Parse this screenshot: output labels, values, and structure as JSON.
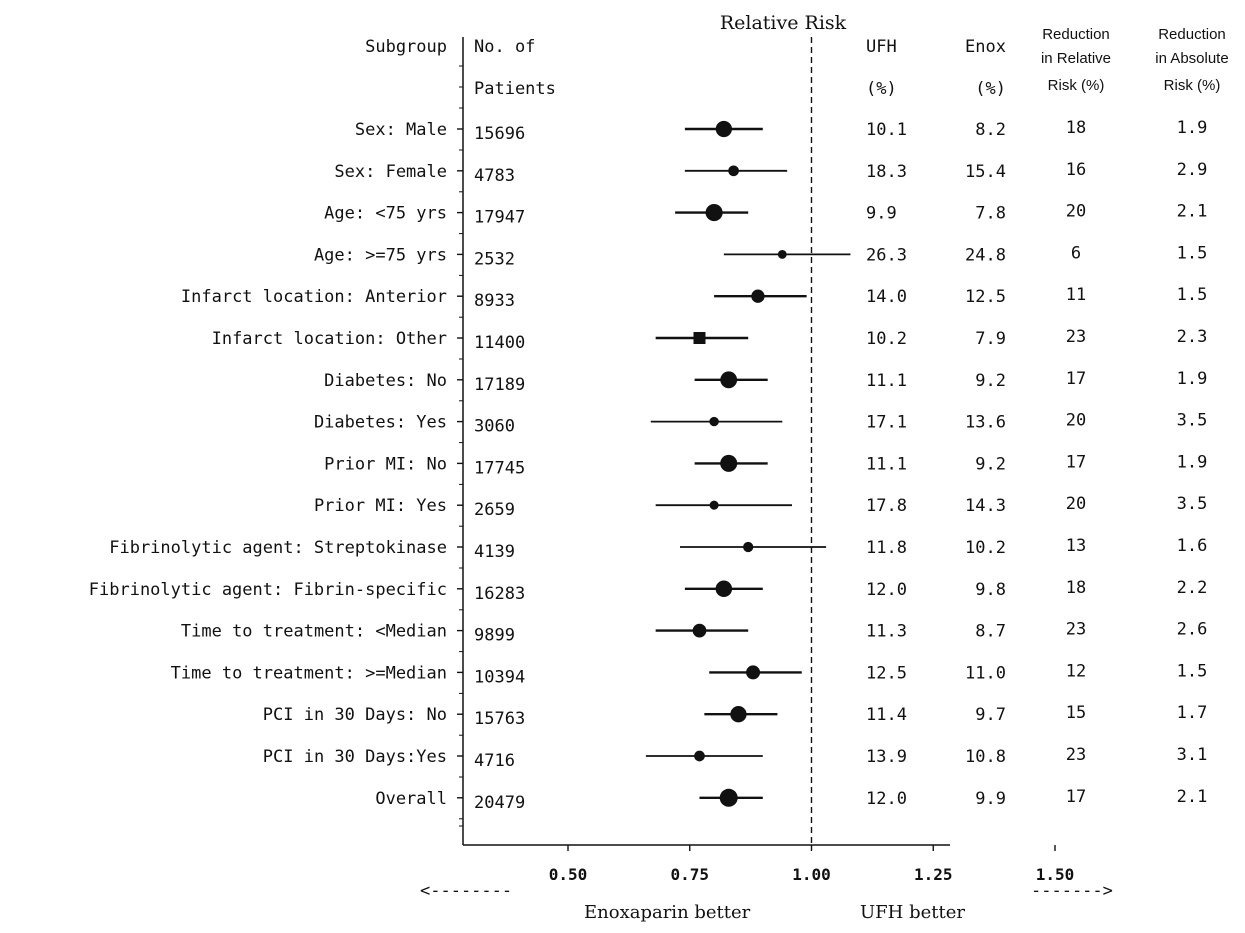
{
  "chart_data": {
    "type": "forest",
    "title": "Relative Risk",
    "columns": {
      "subgroup": "Subgroup",
      "n_line1": "No. of",
      "n_line2": "Patients",
      "ufh_line1": "UFH",
      "ufh_line2": "(%)",
      "enox_line1": "Enox",
      "enox_line2": "(%)",
      "rrr_line1": "Reduction",
      "rrr_line2": "in Relative",
      "rrr_line3": "Risk (%)",
      "arr_line1": "Reduction",
      "arr_line2": "in Absolute",
      "arr_line3": "Risk (%)"
    },
    "x_ticks": [
      "0.50",
      "0.75",
      "1.00",
      "1.25",
      "1.50"
    ],
    "x_tick_values": [
      0.5,
      0.75,
      1.0,
      1.25,
      1.5
    ],
    "xlim": [
      0.3,
      1.75
    ],
    "reference_line": 1.0,
    "footer": {
      "left_arrow": "<--------",
      "left_label": "Enoxaparin better",
      "right_label": "UFH  better",
      "right_arrow": "------->"
    },
    "rows": [
      {
        "label": "Sex: Male",
        "n": "15696",
        "rr": 0.82,
        "lo": 0.74,
        "hi": 0.9,
        "ufh": "10.1",
        "enox": "8.2",
        "rrr": "18",
        "arr": "1.9",
        "weight": 0.77
      },
      {
        "label": "Sex: Female",
        "n": "4783",
        "rr": 0.84,
        "lo": 0.74,
        "hi": 0.95,
        "ufh": "18.3",
        "enox": "15.4",
        "rrr": "16",
        "arr": "2.9",
        "weight": 0.23
      },
      {
        "label": "Age: <75 yrs",
        "n": "17947",
        "rr": 0.8,
        "lo": 0.72,
        "hi": 0.87,
        "ufh": "9.9",
        "enox": "7.8",
        "rrr": "20",
        "arr": "2.1",
        "weight": 0.88
      },
      {
        "label": "Age: >=75 yrs",
        "n": "2532",
        "rr": 0.94,
        "lo": 0.82,
        "hi": 1.08,
        "ufh": "26.3",
        "enox": "24.8",
        "rrr": "6",
        "arr": "1.5",
        "weight": 0.12
      },
      {
        "label": "Infarct location: Anterior",
        "n": "8933",
        "rr": 0.89,
        "lo": 0.8,
        "hi": 0.99,
        "ufh": "14.0",
        "enox": "12.5",
        "rrr": "11",
        "arr": "1.5",
        "weight": 0.44
      },
      {
        "label": "Infarct location: Other",
        "n": "11400",
        "rr": 0.77,
        "lo": 0.68,
        "hi": 0.87,
        "ufh": "10.2",
        "enox": "7.9",
        "rrr": "23",
        "arr": "2.3",
        "weight": 0.56
      },
      {
        "label": "Diabetes: No",
        "n": "17189",
        "rr": 0.83,
        "lo": 0.76,
        "hi": 0.91,
        "ufh": "11.1",
        "enox": "9.2",
        "rrr": "17",
        "arr": "1.9",
        "weight": 0.84
      },
      {
        "label": "Diabetes: Yes",
        "n": "3060",
        "rr": 0.8,
        "lo": 0.67,
        "hi": 0.94,
        "ufh": "17.1",
        "enox": "13.6",
        "rrr": "20",
        "arr": "3.5",
        "weight": 0.15
      },
      {
        "label": "Prior MI: No",
        "n": "17745",
        "rr": 0.83,
        "lo": 0.76,
        "hi": 0.91,
        "ufh": "11.1",
        "enox": "9.2",
        "rrr": "17",
        "arr": "1.9",
        "weight": 0.87
      },
      {
        "label": "Prior MI: Yes",
        "n": "2659",
        "rr": 0.8,
        "lo": 0.68,
        "hi": 0.96,
        "ufh": "17.8",
        "enox": "14.3",
        "rrr": "20",
        "arr": "3.5",
        "weight": 0.13
      },
      {
        "label": "Fibrinolytic agent: Streptokinase",
        "n": "4139",
        "rr": 0.87,
        "lo": 0.73,
        "hi": 1.03,
        "ufh": "11.8",
        "enox": "10.2",
        "rrr": "13",
        "arr": "1.6",
        "weight": 0.2
      },
      {
        "label": "Fibrinolytic agent: Fibrin-specific",
        "n": "16283",
        "rr": 0.82,
        "lo": 0.74,
        "hi": 0.9,
        "ufh": "12.0",
        "enox": "9.8",
        "rrr": "18",
        "arr": "2.2",
        "weight": 0.8
      },
      {
        "label": "Time to treatment: <Median",
        "n": "9899",
        "rr": 0.77,
        "lo": 0.68,
        "hi": 0.87,
        "ufh": "11.3",
        "enox": "8.7",
        "rrr": "23",
        "arr": "2.6",
        "weight": 0.48
      },
      {
        "label": "Time to treatment: >=Median",
        "n": "10394",
        "rr": 0.88,
        "lo": 0.79,
        "hi": 0.98,
        "ufh": "12.5",
        "enox": "11.0",
        "rrr": "12",
        "arr": "1.5",
        "weight": 0.51
      },
      {
        "label": "PCI in 30 Days: No",
        "n": "15763",
        "rr": 0.85,
        "lo": 0.78,
        "hi": 0.93,
        "ufh": "11.4",
        "enox": "9.7",
        "rrr": "15",
        "arr": "1.7",
        "weight": 0.77
      },
      {
        "label": "PCI in 30 Days:Yes",
        "n": "4716",
        "rr": 0.77,
        "lo": 0.66,
        "hi": 0.9,
        "ufh": "13.9",
        "enox": "10.8",
        "rrr": "23",
        "arr": "3.1",
        "weight": 0.23
      },
      {
        "label": "Overall",
        "n": "20479",
        "rr": 0.83,
        "lo": 0.77,
        "hi": 0.9,
        "ufh": "12.0",
        "enox": "9.9",
        "rrr": "17",
        "arr": "2.1",
        "weight": 1.0
      }
    ]
  }
}
